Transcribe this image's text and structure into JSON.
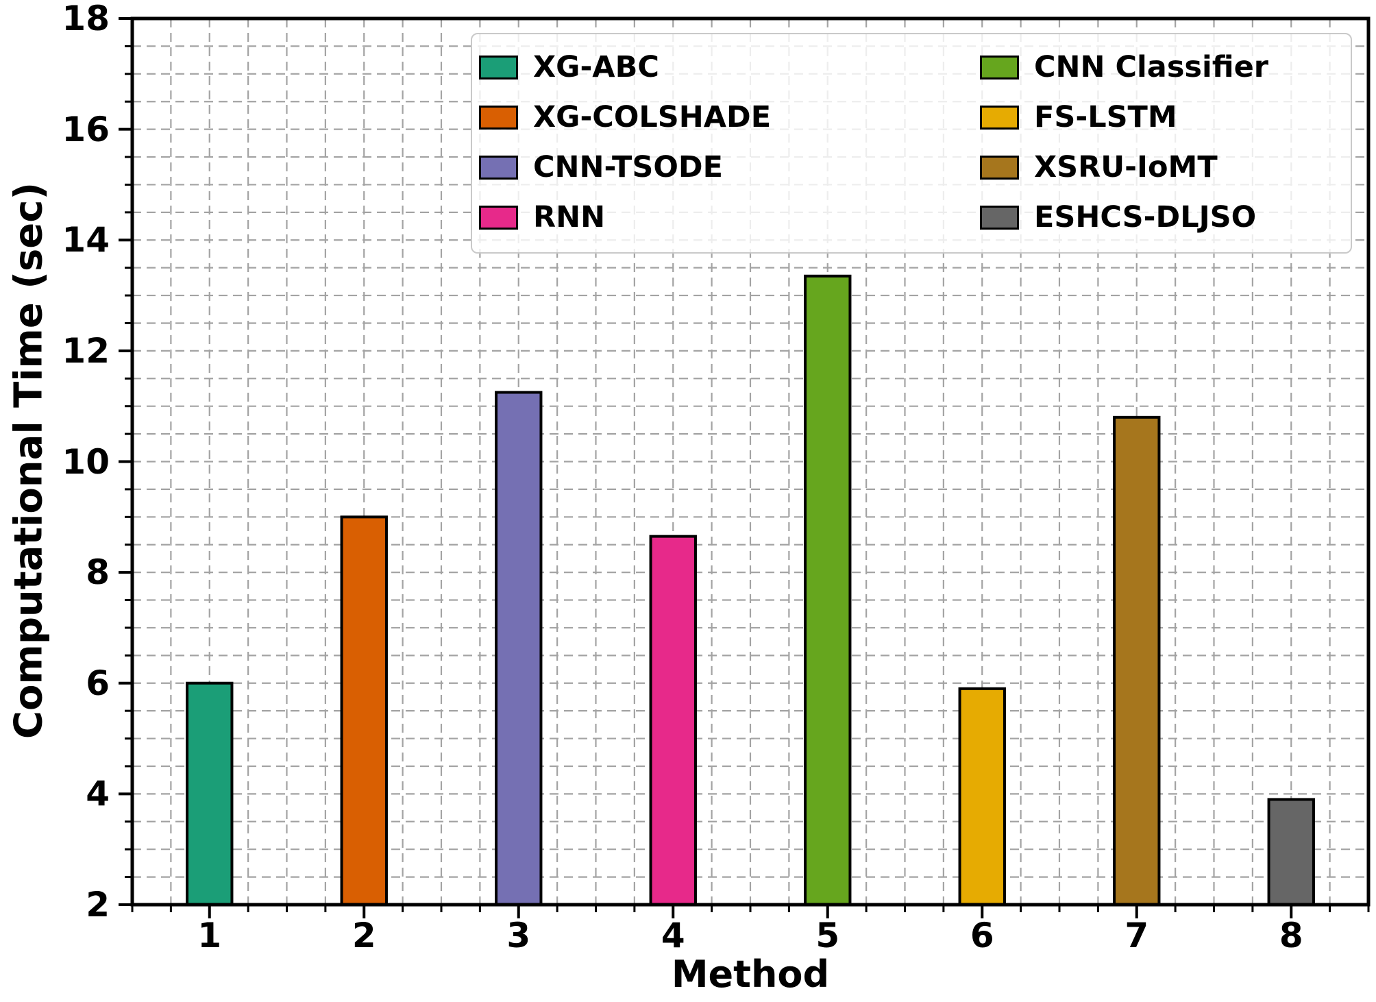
{
  "chart_data": {
    "type": "bar",
    "title": "",
    "xlabel": "Method",
    "ylabel": "Computational Time (sec)",
    "xlim": [
      0.5,
      8.5
    ],
    "ylim": [
      2,
      18
    ],
    "y_major_ticks": [
      2,
      4,
      6,
      8,
      10,
      12,
      14,
      16,
      18
    ],
    "y_minor_step": 0.5,
    "x_major_ticks": [
      "1",
      "2",
      "3",
      "4",
      "5",
      "6",
      "7",
      "8"
    ],
    "x_minor_step": 0.25,
    "grid": {
      "style": "dashed",
      "color": "#a3a3a3",
      "on_minor": true
    },
    "bar_width_units": 0.29,
    "categories": [
      "1",
      "2",
      "3",
      "4",
      "5",
      "6",
      "7",
      "8"
    ],
    "bars": [
      {
        "method": "1",
        "label": "XG-ABC",
        "color": "#1b9e77",
        "value": 6.0
      },
      {
        "method": "2",
        "label": "XG-COLSHADE",
        "color": "#d95f02",
        "value": 9.0
      },
      {
        "method": "3",
        "label": "CNN-TSODE",
        "color": "#7570b3",
        "value": 11.25
      },
      {
        "method": "4",
        "label": "RNN",
        "color": "#e7298a",
        "value": 8.65
      },
      {
        "method": "5",
        "label": "CNN Classifier",
        "color": "#66a61e",
        "value": 13.35
      },
      {
        "method": "6",
        "label": "FS-LSTM",
        "color": "#e6ab02",
        "value": 5.9
      },
      {
        "method": "7",
        "label": "XSRU-IoMT",
        "color": "#a6761d",
        "value": 10.8
      },
      {
        "method": "8",
        "label": "ESHCS-DLJSO",
        "color": "#666666",
        "value": 3.9
      }
    ],
    "legend": {
      "columns": 2,
      "position": "upper center",
      "items": [
        {
          "label": "XG-ABC",
          "color": "#1b9e77"
        },
        {
          "label": "XG-COLSHADE",
          "color": "#d95f02"
        },
        {
          "label": "CNN-TSODE",
          "color": "#7570b3"
        },
        {
          "label": "RNN",
          "color": "#e7298a"
        },
        {
          "label": "CNN Classifier",
          "color": "#66a61e"
        },
        {
          "label": "FS-LSTM",
          "color": "#e6ab02"
        },
        {
          "label": "XSRU-IoMT",
          "color": "#a6761d"
        },
        {
          "label": "ESHCS-DLJSO",
          "color": "#666666"
        }
      ]
    },
    "colors": {
      "spine": "#000000",
      "tick": "#000000",
      "grid": "#a3a3a3",
      "bar_edge": "#000000",
      "legend_border": "#c9c9c9"
    }
  }
}
